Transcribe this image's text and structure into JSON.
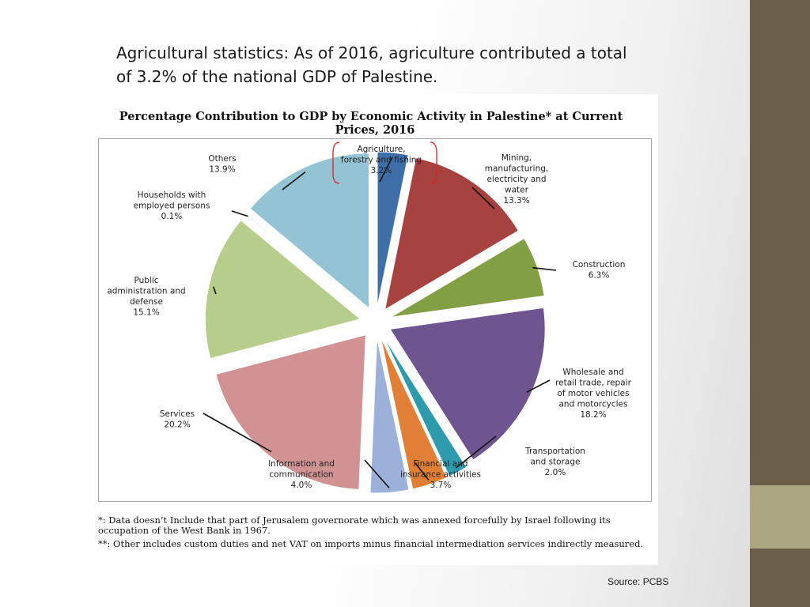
{
  "slide": {
    "title": "Agricultural statistics: As of 2016, agriculture contributed a total of 3.2% of the national GDP of Palestine.",
    "source": "Source: PCBS"
  },
  "figure": {
    "footnote_1": "*: Data doesn’t Include that part of Jerusalem governorate which was annexed forcefully by Israel following its occupation of the West Bank in 1967.",
    "footnote_2": "**: Other includes custom duties and net VAT on imports minus financial intermediation services indirectly measured."
  },
  "colors": {
    "right_bar": "#6b5f49",
    "right_accent": "#aca682",
    "highlight_bracket": "#e02020"
  },
  "chart_data": {
    "type": "pie",
    "title_line_1": "Percentage Contribution to GDP by Economic Activity in Palestine* at Current",
    "title_line_2": "Prices, 2016",
    "unit": "%",
    "slices": [
      {
        "label_lines": [
          "Agriculture,",
          "forestry and fishing"
        ],
        "value": 3.2,
        "value_label": "3.2%",
        "color": "#3f6fa8",
        "highlighted": true
      },
      {
        "label_lines": [
          "Mining,",
          "manufacturing,",
          "electricity and",
          "water"
        ],
        "value": 13.3,
        "value_label": "13.3%",
        "color": "#a64240"
      },
      {
        "label_lines": [
          "Construction"
        ],
        "value": 6.3,
        "value_label": "6.3%",
        "color": "#82a043"
      },
      {
        "label_lines": [
          "Wholesale and",
          "retail trade, repair",
          "of motor vehicles",
          "and motorcycles"
        ],
        "value": 18.2,
        "value_label": "18.2%",
        "color": "#6e5590"
      },
      {
        "label_lines": [
          "Transportation",
          "and storage"
        ],
        "value": 2.0,
        "value_label": "2.0%",
        "color": "#2e9aad"
      },
      {
        "label_lines": [
          "Financial and",
          "insurance activities"
        ],
        "value": 3.7,
        "value_label": "3.7%",
        "color": "#e07f35"
      },
      {
        "label_lines": [
          "Information and",
          "communication"
        ],
        "value": 4.0,
        "value_label": "4.0%",
        "color": "#9bb1da"
      },
      {
        "label_lines": [
          "Services"
        ],
        "value": 20.2,
        "value_label": "20.2%",
        "color": "#d09292"
      },
      {
        "label_lines": [
          "Public",
          "administration and",
          "defense"
        ],
        "value": 15.1,
        "value_label": "15.1%",
        "color": "#b6cd8c"
      },
      {
        "label_lines": [
          "Households with",
          "employed persons"
        ],
        "value": 0.1,
        "value_label": "0.1%",
        "color": "#8aa5c6"
      },
      {
        "label_lines": [
          "Others"
        ],
        "value": 13.9,
        "value_label": "13.9%",
        "color": "#94c3d4"
      }
    ]
  }
}
